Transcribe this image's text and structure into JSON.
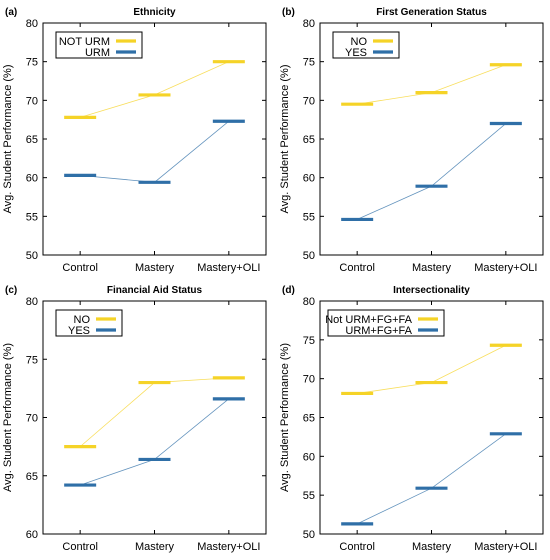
{
  "chart_data": [
    {
      "type": "line",
      "panel_label": "(a)",
      "title": "Ethnicity",
      "ylabel": "Avg. Student Performance (%)",
      "xlabel": "",
      "categories": [
        "Control",
        "Mastery",
        "Mastery+OLI"
      ],
      "ylim": [
        50,
        80
      ],
      "yticks": [
        50,
        55,
        60,
        65,
        70,
        75,
        80
      ],
      "grid": false,
      "legend_position": "top-left",
      "series": [
        {
          "name": "NOT URM",
          "color": "#f5d327",
          "values": [
            67.8,
            70.7,
            75.0
          ]
        },
        {
          "name": "URM",
          "color": "#2f6fa7",
          "values": [
            60.3,
            59.4,
            67.3
          ]
        }
      ]
    },
    {
      "type": "line",
      "panel_label": "(b)",
      "title": "First Generation Status",
      "ylabel": "Avg. Student Performance (%)",
      "xlabel": "",
      "categories": [
        "Control",
        "Mastery",
        "Mastery+OLI"
      ],
      "ylim": [
        50,
        80
      ],
      "yticks": [
        50,
        55,
        60,
        65,
        70,
        75,
        80
      ],
      "grid": false,
      "legend_position": "top-left",
      "series": [
        {
          "name": "NO",
          "color": "#f5d327",
          "values": [
            69.5,
            71.0,
            74.6
          ]
        },
        {
          "name": "YES",
          "color": "#2f6fa7",
          "values": [
            54.6,
            58.9,
            67.0
          ]
        }
      ]
    },
    {
      "type": "line",
      "panel_label": "(c)",
      "title": "Financial Aid Status",
      "ylabel": "Avg. Student Performance (%)",
      "xlabel": "",
      "categories": [
        "Control",
        "Mastery",
        "Mastery+OLI"
      ],
      "ylim": [
        60,
        80
      ],
      "yticks": [
        60,
        65,
        70,
        75,
        80
      ],
      "grid": false,
      "legend_position": "top-left",
      "series": [
        {
          "name": "NO",
          "color": "#f5d327",
          "values": [
            67.5,
            73.0,
            73.4
          ]
        },
        {
          "name": "YES",
          "color": "#2f6fa7",
          "values": [
            64.2,
            66.4,
            71.6
          ]
        }
      ]
    },
    {
      "type": "line",
      "panel_label": "(d)",
      "title": "Intersectionality",
      "ylabel": "Avg. Student Performance (%)",
      "xlabel": "",
      "categories": [
        "Control",
        "Mastery",
        "Mastery+OLI"
      ],
      "ylim": [
        50,
        80
      ],
      "yticks": [
        50,
        55,
        60,
        65,
        70,
        75,
        80
      ],
      "grid": false,
      "legend_position": "top-left",
      "series": [
        {
          "name": "Not URM+FG+FA",
          "color": "#f5d327",
          "values": [
            68.1,
            69.5,
            74.3
          ]
        },
        {
          "name": "URM+FG+FA",
          "color": "#2f6fa7",
          "values": [
            51.3,
            55.9,
            62.9
          ]
        }
      ]
    }
  ]
}
